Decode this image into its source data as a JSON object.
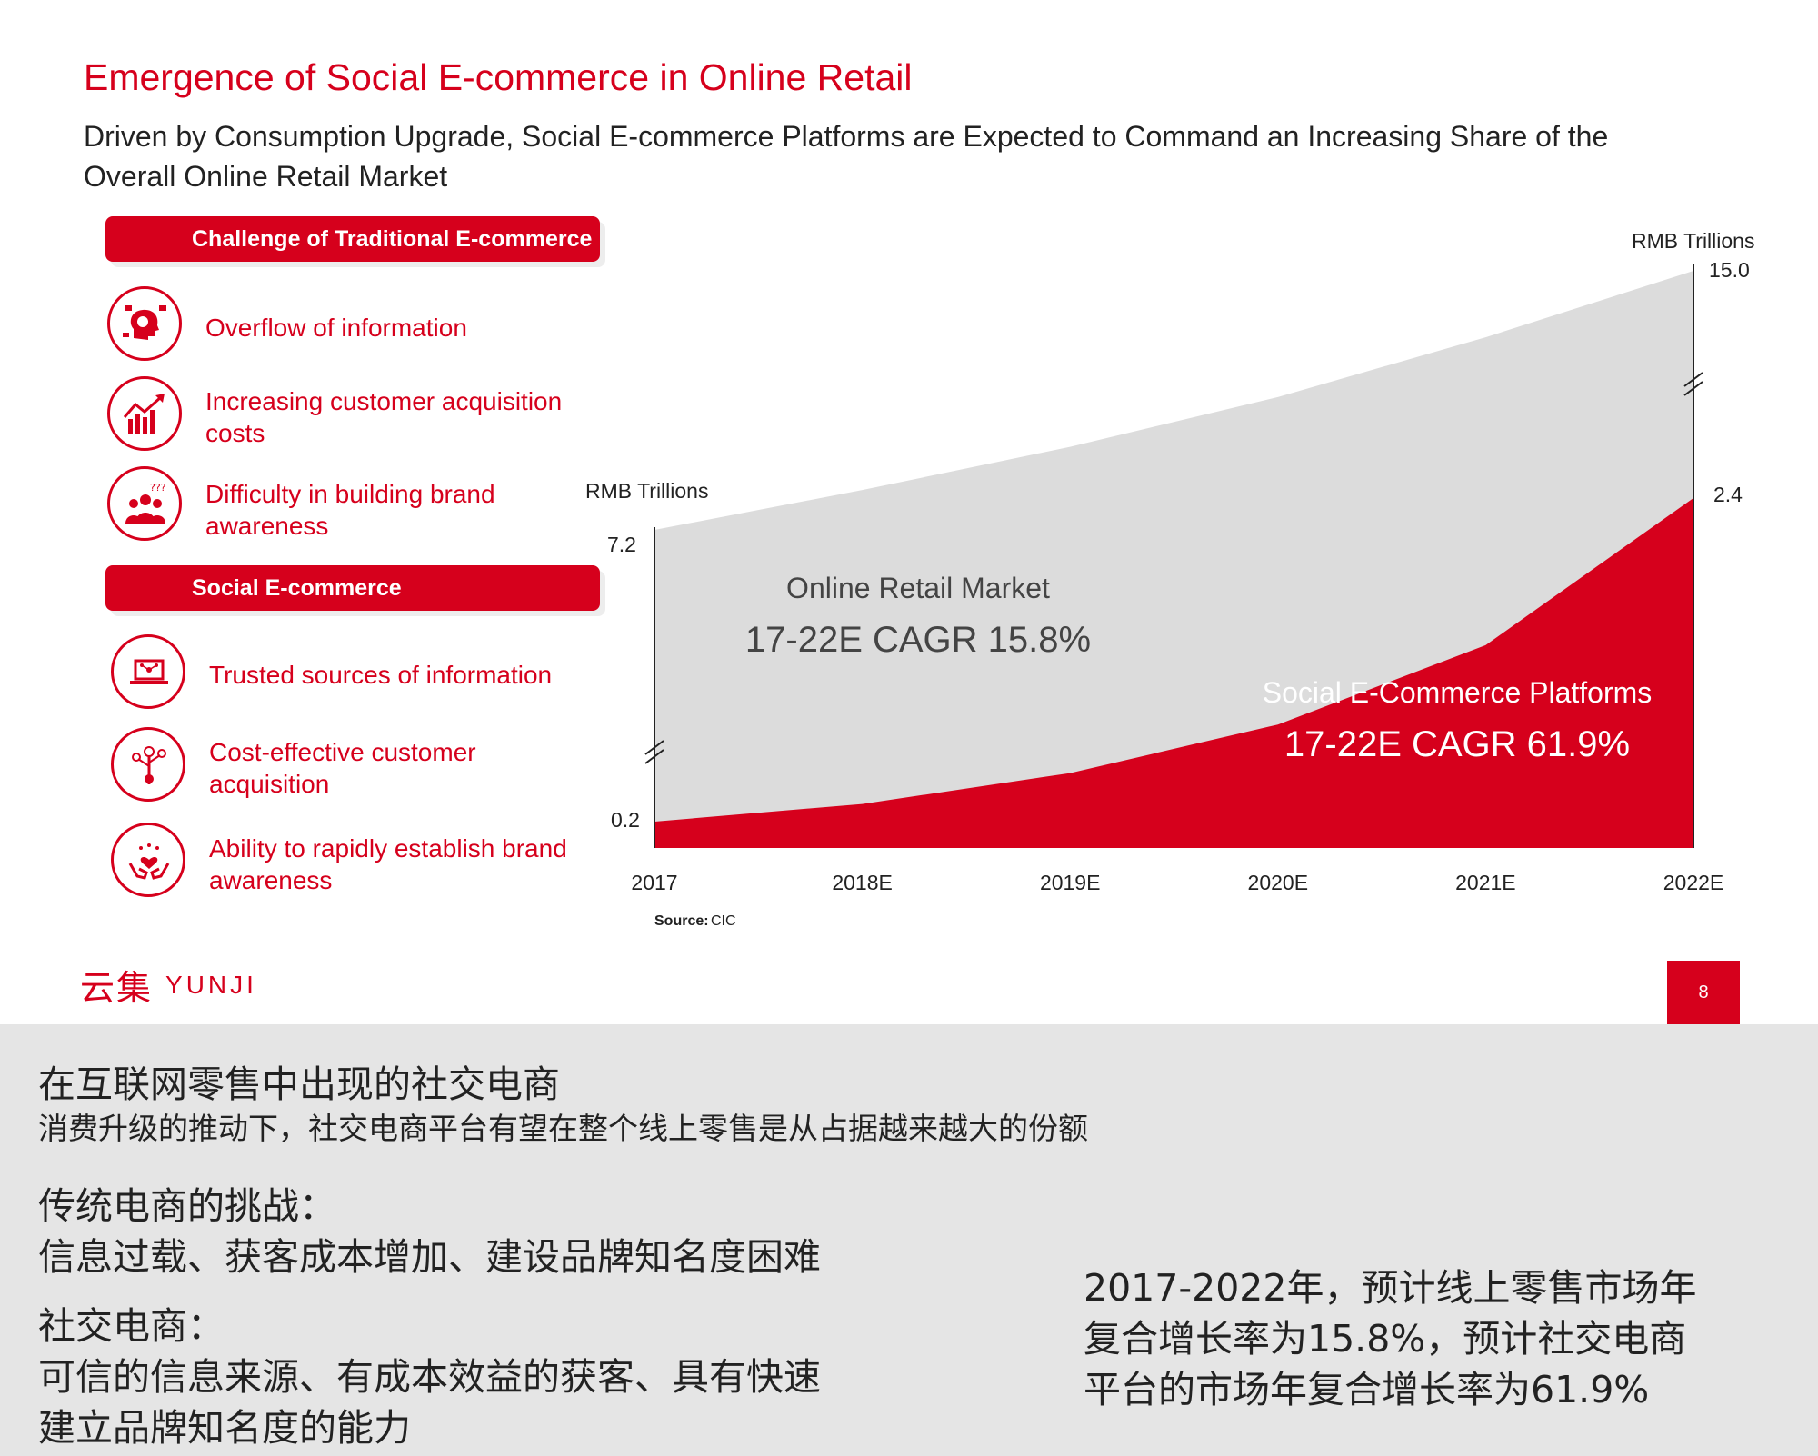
{
  "slide": {
    "title": "Emergence of Social E-commerce in Online Retail",
    "subtitle": "Driven by Consumption Upgrade, Social E-commerce Platforms are Expected to Command an Increasing Share of the Overall Online Retail Market",
    "page_number": "8",
    "brand": {
      "cn": "云集",
      "en": "YUNJI"
    }
  },
  "challenges": {
    "header": "Challenge of Traditional E-commerce",
    "items": [
      {
        "label": "Overflow of information",
        "icon": "brain-overload-icon"
      },
      {
        "label": "Increasing customer acquisition costs",
        "icon": "rising-cost-chart-icon"
      },
      {
        "label": "Difficulty in building brand awareness",
        "icon": "confused-people-icon"
      }
    ]
  },
  "social": {
    "header": "Social E-commerce",
    "items": [
      {
        "label": "Trusted sources of information",
        "icon": "laptop-network-icon"
      },
      {
        "label": "Cost-effective customer acquisition",
        "icon": "money-tree-icon"
      },
      {
        "label": "Ability to rapidly establish brand awareness",
        "icon": "hands-heart-icon"
      }
    ]
  },
  "chart_data": {
    "type": "area",
    "categories": [
      "2017",
      "2018E",
      "2019E",
      "2020E",
      "2021E",
      "2022E"
    ],
    "series": [
      {
        "name": "Online Retail Market",
        "cagr_label": "17-22E CAGR 15.8%",
        "color": "#dcdcdc",
        "values": [
          7.2,
          8.4,
          9.7,
          11.2,
          13.0,
          15.0
        ]
      },
      {
        "name": "Social E-Commerce Platforms",
        "cagr_label": "17-22E CAGR 61.9%",
        "color": "#d6001c",
        "values": [
          0.2,
          0.32,
          0.53,
          0.86,
          1.4,
          2.4
        ]
      }
    ],
    "left_axis": {
      "unit": "RMB Trillions",
      "labels": [
        "7.2",
        "0.2"
      ]
    },
    "right_axis": {
      "unit": "RMB Trillions",
      "labels": [
        "15.0",
        "2.4"
      ]
    },
    "axis_break": true,
    "source_label": "Source:",
    "source_value": "CIC"
  },
  "notes": {
    "title": "在互联网零售中出现的社交电商",
    "subtitle": "消费升级的推动下，社交电商平台有望在整个线上零售是从占据越来越大的份额",
    "challenges_heading": "传统电商的挑战：",
    "challenges_text": "信息过载、获客成本增加、建设品牌知名度困难",
    "social_heading": "社交电商：",
    "social_line1": "可信的信息来源、有成本效益的获客、具有快速",
    "social_line2": "建立品牌知名度的能力",
    "forecast_line1": "2017-2022年，预计线上零售市场年",
    "forecast_line2": "复合增长率为15.8%，预计社交电商",
    "forecast_line3": "平台的市场年复合增长率为61.9%"
  }
}
